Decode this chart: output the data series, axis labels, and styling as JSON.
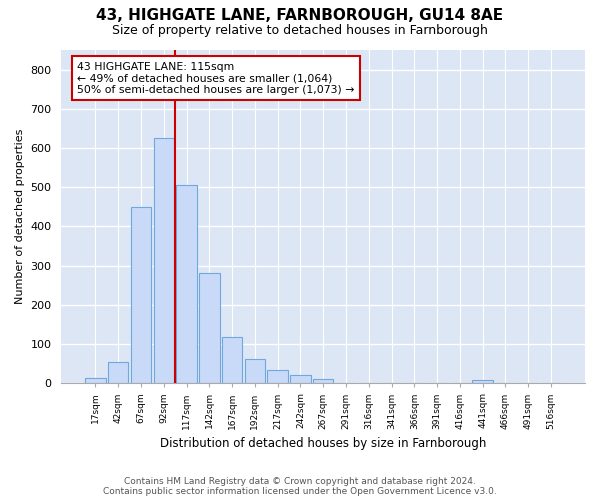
{
  "title": "43, HIGHGATE LANE, FARNBOROUGH, GU14 8AE",
  "subtitle": "Size of property relative to detached houses in Farnborough",
  "xlabel": "Distribution of detached houses by size in Farnborough",
  "ylabel": "Number of detached properties",
  "bar_labels": [
    "17sqm",
    "42sqm",
    "67sqm",
    "92sqm",
    "117sqm",
    "142sqm",
    "167sqm",
    "192sqm",
    "217sqm",
    "242sqm",
    "267sqm",
    "291sqm",
    "316sqm",
    "341sqm",
    "366sqm",
    "391sqm",
    "416sqm",
    "441sqm",
    "466sqm",
    "491sqm",
    "516sqm"
  ],
  "bar_values": [
    13,
    55,
    450,
    625,
    505,
    280,
    117,
    62,
    35,
    20,
    10,
    0,
    0,
    0,
    0,
    0,
    0,
    8,
    0,
    0,
    0
  ],
  "bar_color": "#c9daf8",
  "bar_edge_color": "#6fa8dc",
  "vline_bar_index": 4,
  "vline_color": "#cc0000",
  "annotation_line1": "43 HIGHGATE LANE: 115sqm",
  "annotation_line2": "← 49% of detached houses are smaller (1,064)",
  "annotation_line3": "50% of semi-detached houses are larger (1,073) →",
  "annotation_box_edgecolor": "#cc0000",
  "ylim": [
    0,
    850
  ],
  "yticks": [
    0,
    100,
    200,
    300,
    400,
    500,
    600,
    700,
    800
  ],
  "plot_bg_color": "#dce6f5",
  "fig_bg_color": "#ffffff",
  "grid_color": "#ffffff",
  "footer_line1": "Contains HM Land Registry data © Crown copyright and database right 2024.",
  "footer_line2": "Contains public sector information licensed under the Open Government Licence v3.0."
}
